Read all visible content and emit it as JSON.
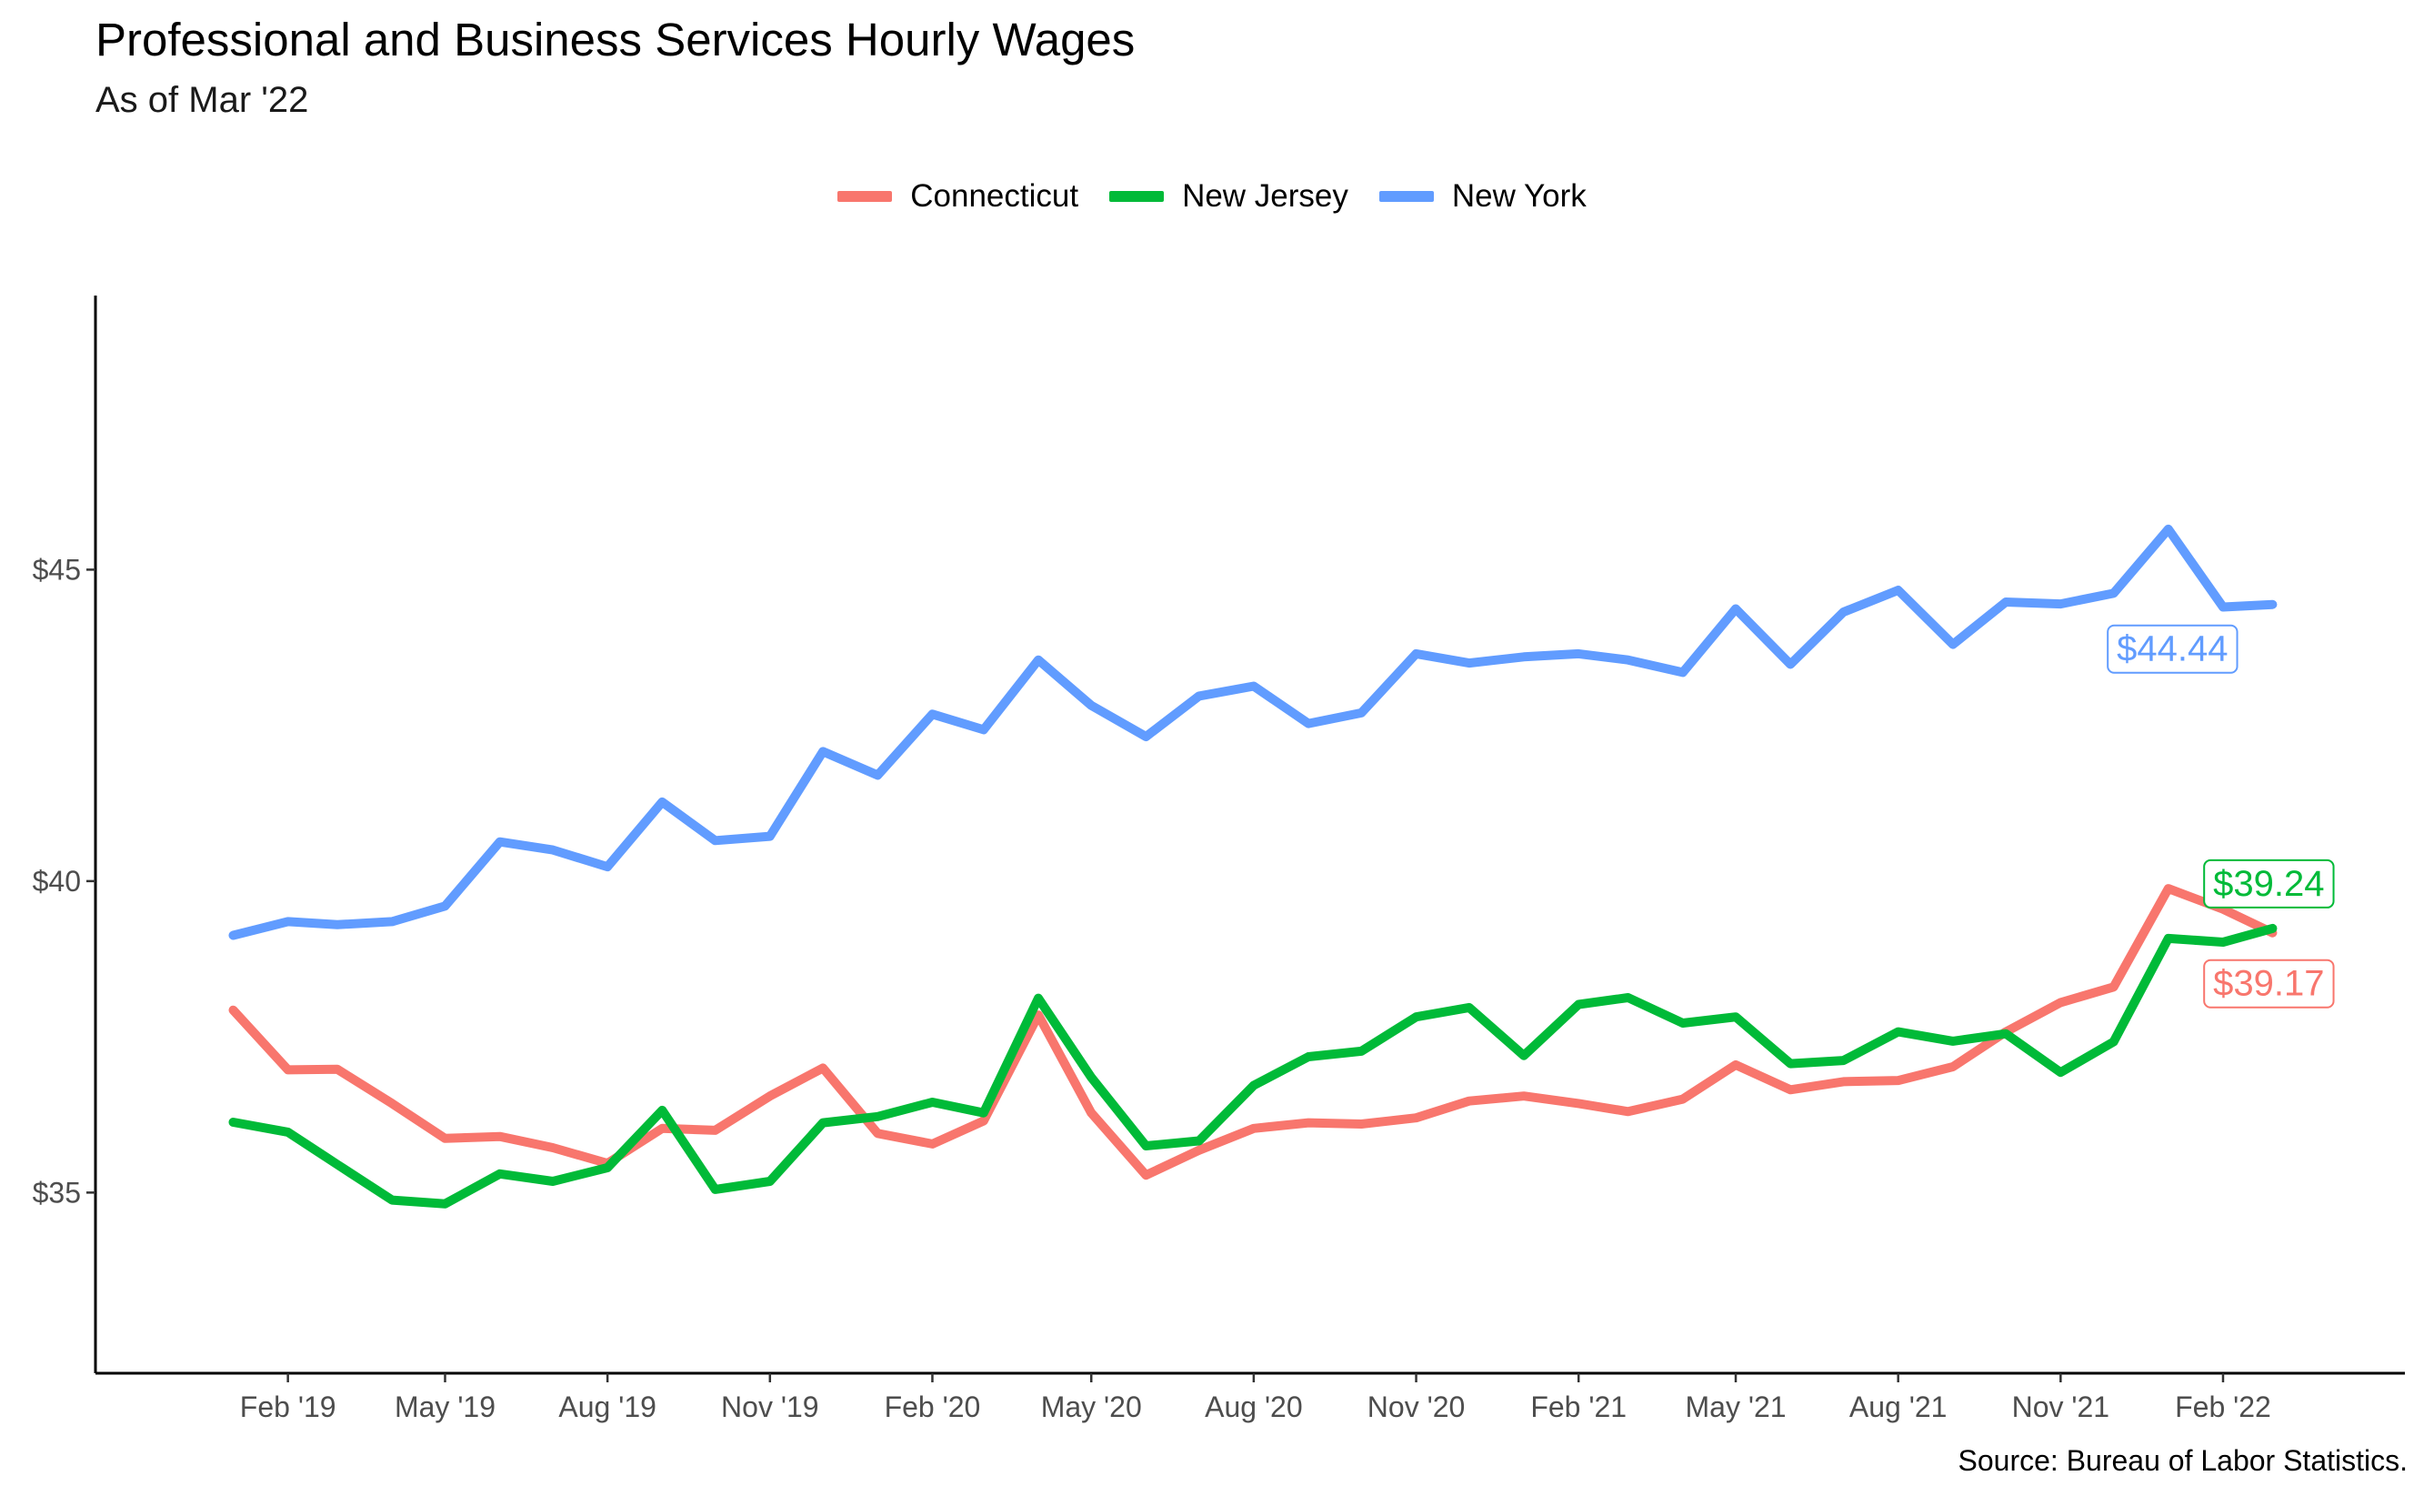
{
  "chart_data": {
    "type": "line",
    "title": "Professional and Business Services Hourly Wages",
    "subtitle": "As of Mar '22",
    "caption": "Source: Bureau of Labor Statistics.",
    "xlabel": "",
    "ylabel": "",
    "x": [
      "2019-01",
      "2019-02",
      "2019-03",
      "2019-04",
      "2019-05",
      "2019-06",
      "2019-07",
      "2019-08",
      "2019-09",
      "2019-10",
      "2019-11",
      "2019-12",
      "2020-01",
      "2020-02",
      "2020-03",
      "2020-04",
      "2020-05",
      "2020-06",
      "2020-07",
      "2020-08",
      "2020-09",
      "2020-10",
      "2020-11",
      "2020-12",
      "2021-01",
      "2021-02",
      "2021-03",
      "2021-04",
      "2021-05",
      "2021-06",
      "2021-07",
      "2021-08",
      "2021-09",
      "2021-10",
      "2021-11",
      "2021-12",
      "2022-01",
      "2022-02",
      "2022-03"
    ],
    "x_ticks": [
      "2019-02",
      "2019-05",
      "2019-08",
      "2019-11",
      "2020-02",
      "2020-05",
      "2020-08",
      "2020-11",
      "2021-02",
      "2021-05",
      "2021-08",
      "2021-11",
      "2022-02"
    ],
    "x_tick_labels": [
      "Feb '19",
      "May '19",
      "Aug '19",
      "Nov '19",
      "Feb '20",
      "May '20",
      "Aug '20",
      "Nov '20",
      "Feb '21",
      "May '21",
      "Aug '21",
      "Nov '21",
      "Feb '22"
    ],
    "xlim": [
      "2018-10-15",
      "2022-05-15"
    ],
    "y_ticks": [
      35,
      40,
      45
    ],
    "y_tick_labels": [
      "$35",
      "$40",
      "$45"
    ],
    "ylim": [
      32.1,
      49.4
    ],
    "grid": false,
    "legend_position": "top",
    "series": [
      {
        "name": "Connecticut",
        "color": "#F8766D",
        "end_label": "$39.17",
        "values": [
          37.93,
          36.97,
          36.98,
          36.43,
          35.87,
          35.9,
          35.72,
          35.47,
          36.03,
          36.0,
          36.55,
          37.0,
          35.95,
          35.78,
          36.15,
          37.85,
          36.28,
          35.28,
          35.68,
          36.03,
          36.12,
          36.1,
          36.2,
          36.47,
          36.55,
          36.43,
          36.3,
          36.5,
          37.05,
          36.65,
          36.78,
          36.8,
          37.02,
          37.58,
          38.05,
          38.3,
          39.88,
          39.55,
          39.17
        ]
      },
      {
        "name": "New Jersey",
        "color": "#00BA38",
        "end_label": "$39.24",
        "values": [
          36.13,
          35.97,
          35.45,
          34.88,
          34.82,
          35.3,
          35.18,
          35.4,
          36.32,
          35.05,
          35.18,
          36.12,
          36.22,
          36.45,
          36.28,
          38.12,
          36.85,
          35.75,
          35.83,
          36.72,
          37.18,
          37.27,
          37.82,
          37.97,
          37.2,
          38.02,
          38.13,
          37.72,
          37.82,
          37.07,
          37.12,
          37.58,
          37.43,
          37.55,
          36.93,
          37.42,
          39.08,
          39.02,
          39.24
        ]
      },
      {
        "name": "New York",
        "color": "#619CFF",
        "end_label": "$44.44",
        "values": [
          39.13,
          39.35,
          39.3,
          39.35,
          39.6,
          40.63,
          40.5,
          40.23,
          41.27,
          40.65,
          40.72,
          42.08,
          41.7,
          42.68,
          42.43,
          43.55,
          42.82,
          42.32,
          42.97,
          43.13,
          42.53,
          42.7,
          43.65,
          43.5,
          43.6,
          43.65,
          43.55,
          43.35,
          44.37,
          43.48,
          44.32,
          44.67,
          43.8,
          44.48,
          44.45,
          44.62,
          45.65,
          44.4,
          44.44
        ]
      }
    ]
  }
}
